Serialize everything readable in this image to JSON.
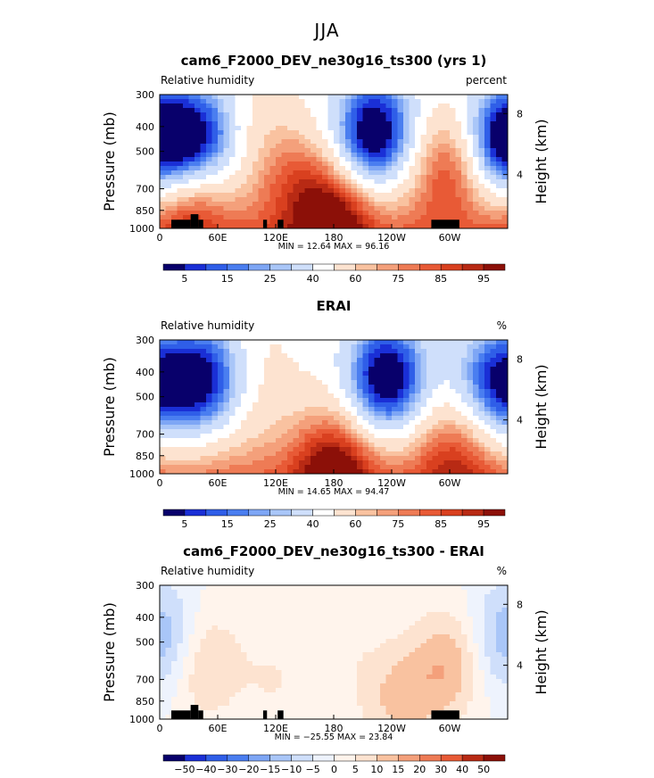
{
  "suptitle": "JJA",
  "colors": {
    "seq": [
      "#08006b",
      "#1a2fd6",
      "#2f5ee8",
      "#4a7ef0",
      "#7ea6f5",
      "#a9c6f8",
      "#cfdffb",
      "#ffffff",
      "#fde3d0",
      "#f9c2a0",
      "#f4a07b",
      "#ee7b55",
      "#e85a36",
      "#d9401f",
      "#b82a14",
      "#8c1008"
    ],
    "div": [
      "#08006b",
      "#1a2fd6",
      "#2f5ee8",
      "#4a7ef0",
      "#7ea6f5",
      "#a9c6f8",
      "#cfdffb",
      "#eef3fd",
      "#fff4ec",
      "#fde3d0",
      "#f9c2a0",
      "#f4a07b",
      "#ee7b55",
      "#e85a36",
      "#b82a14",
      "#8c1008"
    ],
    "land": "#000000"
  },
  "chart_data": [
    {
      "type": "heatmap",
      "title": "cam6_F2000_DEV_ne30g16_ts300 (yrs 1)",
      "left_string": "Relative humidity",
      "right_string": "percent",
      "ylabel": "Pressure (mb)",
      "ylabel_right": "Height (km)",
      "yticks": [
        "300",
        "400",
        "500",
        "700",
        "850",
        "1000"
      ],
      "yticks_right": [
        "8",
        "4"
      ],
      "xticks": [
        "0",
        "60E",
        "120E",
        "180",
        "120W",
        "60W"
      ],
      "stats": "MIN =   12.64   MAX =   96.16",
      "colorbar_labels": [
        "5",
        "15",
        "25",
        "40",
        "60",
        "75",
        "85",
        "95"
      ],
      "palette": "seq",
      "has_land": true,
      "blobs": [
        {
          "lon": 45,
          "p": 450,
          "v": -40
        },
        {
          "lon": 222,
          "p": 430,
          "v": -55
        },
        {
          "lon": 355,
          "p": 460,
          "v": -40
        },
        {
          "lon": 5,
          "p": 480,
          "v": -18
        },
        {
          "lon": 140,
          "p": 620,
          "v": 18
        },
        {
          "lon": 95,
          "p": 380,
          "v": 8
        },
        {
          "lon": 180,
          "p": 930,
          "v": 32
        },
        {
          "lon": 300,
          "p": 560,
          "v": 25
        },
        {
          "lon": 30,
          "p": 770,
          "v": 22
        }
      ],
      "base": 55
    },
    {
      "type": "heatmap",
      "title": "ERAI",
      "left_string": "Relative humidity",
      "right_string": "%",
      "ylabel": "Pressure (mb)",
      "ylabel_right": "Height (km)",
      "yticks": [
        "300",
        "400",
        "500",
        "700",
        "850",
        "1000"
      ],
      "yticks_right": [
        "8",
        "4"
      ],
      "xticks": [
        "0",
        "60E",
        "120E",
        "180",
        "120W",
        "60W"
      ],
      "stats": "MIN =   14.65   MAX =   94.47",
      "colorbar_labels": [
        "5",
        "15",
        "25",
        "40",
        "60",
        "75",
        "85",
        "95"
      ],
      "palette": "seq",
      "has_land": false,
      "blobs": [
        {
          "lon": 48,
          "p": 430,
          "v": -42
        },
        {
          "lon": 235,
          "p": 430,
          "v": -55
        },
        {
          "lon": 345,
          "p": 430,
          "v": -32
        },
        {
          "lon": 10,
          "p": 500,
          "v": -20
        },
        {
          "lon": 180,
          "p": 940,
          "v": 30
        },
        {
          "lon": 305,
          "p": 850,
          "v": 18
        },
        {
          "lon": 100,
          "p": 380,
          "v": 6
        }
      ],
      "base": 55
    },
    {
      "type": "heatmap",
      "title": "cam6_F2000_DEV_ne30g16_ts300 - ERAI",
      "left_string": "Relative humidity",
      "right_string": "%",
      "ylabel": "Pressure (mb)",
      "ylabel_right": "Height (km)",
      "yticks": [
        "300",
        "400",
        "500",
        "700",
        "850",
        "1000"
      ],
      "yticks_right": [
        "8",
        "4"
      ],
      "xticks": [
        "0",
        "60E",
        "120E",
        "180",
        "120W",
        "60W"
      ],
      "stats": "MIN = −25.55   MAX =   23.84",
      "colorbar_labels": [
        "−50",
        "−40",
        "−30",
        "−20",
        "−15",
        "−10",
        "−5",
        "0",
        "5",
        "10",
        "15",
        "20",
        "30",
        "40",
        "50"
      ],
      "palette": "div",
      "has_land": true,
      "blobs": [
        {
          "lon": 8,
          "p": 520,
          "v": -14
        },
        {
          "lon": 40,
          "p": 600,
          "v": 14
        },
        {
          "lon": 300,
          "p": 600,
          "v": 14
        },
        {
          "lon": 250,
          "p": 850,
          "v": 11
        },
        {
          "lon": 350,
          "p": 450,
          "v": -5
        },
        {
          "lon": 120,
          "p": 700,
          "v": 5
        },
        {
          "lon": 200,
          "p": 600,
          "v": 3
        }
      ],
      "base": 0
    }
  ]
}
